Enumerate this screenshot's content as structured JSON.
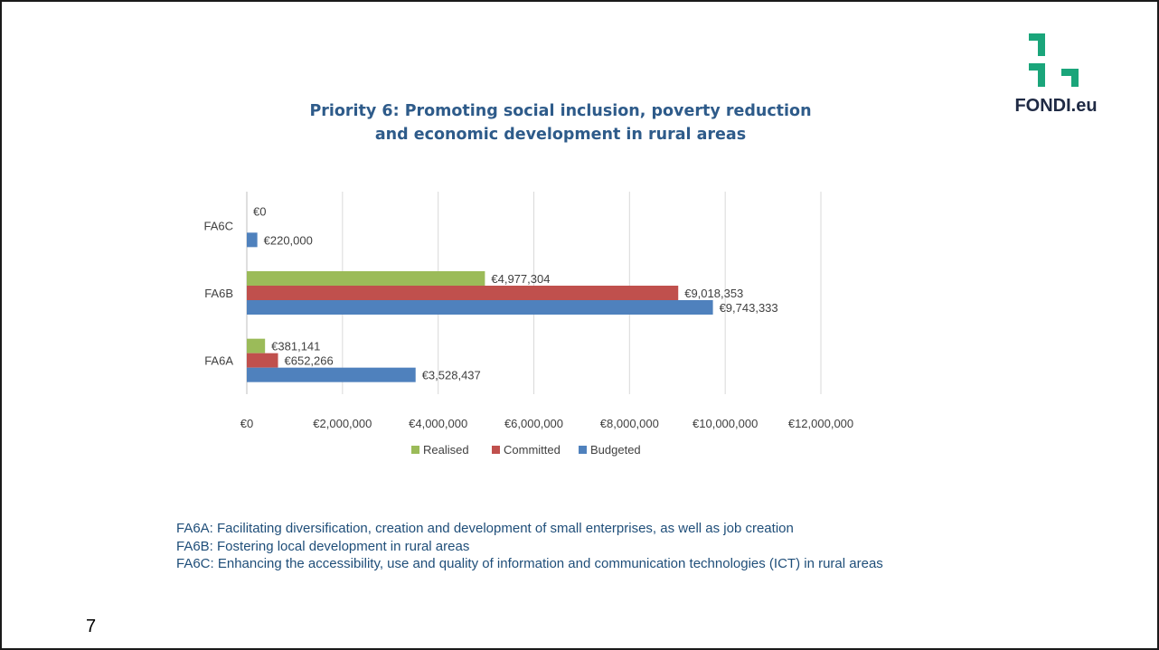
{
  "logo": {
    "text": "FONDI.eu",
    "color": "#1aa57a"
  },
  "chart_data": {
    "type": "bar",
    "orientation": "horizontal",
    "title_lines": [
      "Priority 6: Promoting social inclusion, poverty reduction",
      "and economic development in rural areas"
    ],
    "categories": [
      "FA6C",
      "FA6B",
      "FA6A"
    ],
    "series": [
      {
        "name": "Realised",
        "color": "#9bbb59",
        "values": [
          0,
          4977304,
          381141
        ],
        "labels": [
          "€0",
          "€4,977,304",
          "€381,141"
        ]
      },
      {
        "name": "Committed",
        "color": "#c0504d",
        "values": [
          null,
          9018353,
          652266
        ],
        "labels": [
          "",
          "€9,018,353",
          "€652,266"
        ]
      },
      {
        "name": "Budgeted",
        "color": "#4f81bd",
        "values": [
          220000,
          9743333,
          3528437
        ],
        "labels": [
          "€220,000",
          "€9,743,333",
          "€3,528,437"
        ]
      }
    ],
    "xlim": [
      0,
      12000000
    ],
    "xticks": [
      0,
      2000000,
      4000000,
      6000000,
      8000000,
      10000000,
      12000000
    ],
    "xtick_labels": [
      "€0",
      "€2,000,000",
      "€4,000,000",
      "€6,000,000",
      "€8,000,000",
      "€10,000,000",
      "€12,000,000"
    ],
    "grid": true,
    "legend_position": "bottom"
  },
  "footnotes": [
    "FA6A: Facilitating diversification, creation and development of small enterprises, as well as job creation",
    "FA6B: Fostering local development in rural areas",
    "FA6C: Enhancing the accessibility, use and quality of information and communication technologies (ICT) in rural areas"
  ],
  "page_number": "7"
}
